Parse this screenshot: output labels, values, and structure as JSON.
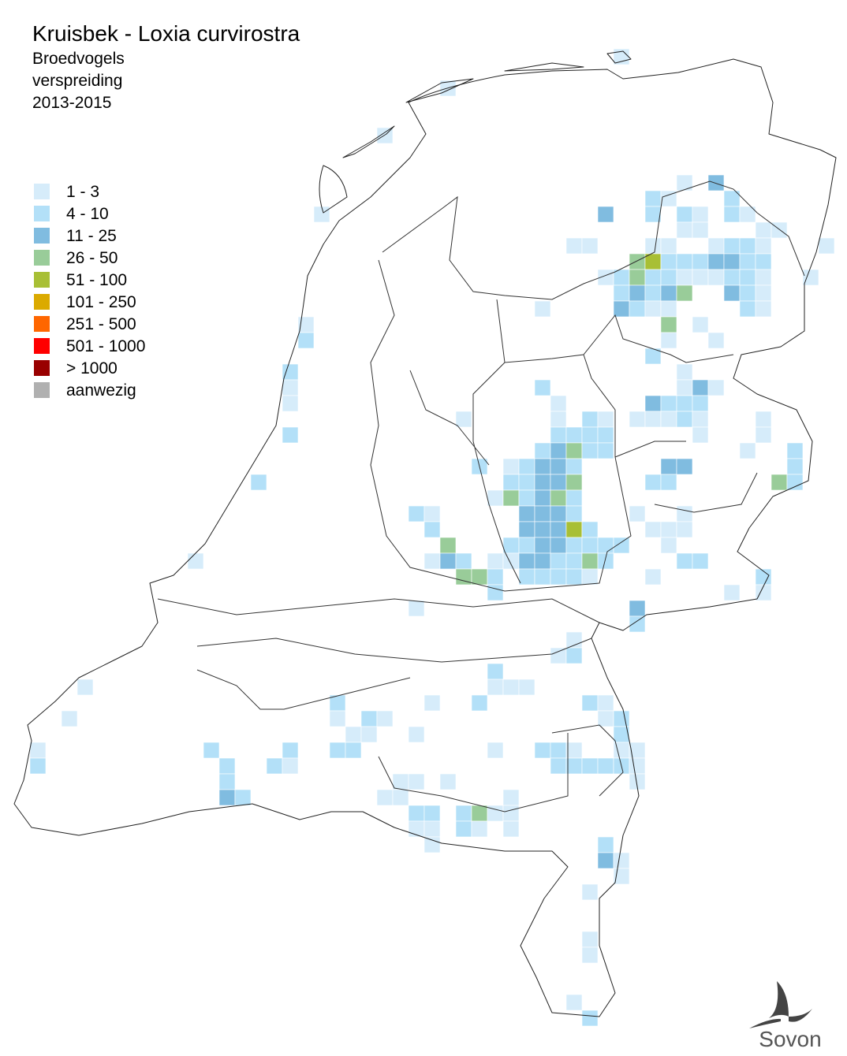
{
  "title": "Kruisbek - Loxia curvirostra",
  "subtitle": [
    "Broedvogels",
    "verspreiding",
    "2013-2015"
  ],
  "legend": [
    {
      "label": "1 - 3",
      "color": "#d6ecfa"
    },
    {
      "label": "4 - 10",
      "color": "#b3e0f8"
    },
    {
      "label": "11 - 25",
      "color": "#80bce0"
    },
    {
      "label": "26 - 50",
      "color": "#99cc99"
    },
    {
      "label": "51 - 100",
      "color": "#a8bf35"
    },
    {
      "label": "101 - 250",
      "color": "#dbaa00"
    },
    {
      "label": "251 - 500",
      "color": "#ff6600"
    },
    {
      "label": "501 - 1000",
      "color": "#ff0000"
    },
    {
      "label": "> 1000",
      "color": "#990000"
    },
    {
      "label": "aanwezig",
      "color": "#b0b0b0"
    }
  ],
  "logo": "Sovon",
  "cells": [
    [
      38,
      3,
      0
    ],
    [
      27,
      5,
      0
    ],
    [
      23,
      8,
      0
    ],
    [
      19,
      13,
      0
    ],
    [
      42,
      11,
      0
    ],
    [
      44,
      11,
      2
    ],
    [
      45,
      12,
      1
    ],
    [
      40,
      12,
      1
    ],
    [
      41,
      12,
      0
    ],
    [
      37,
      13,
      2
    ],
    [
      40,
      13,
      1
    ],
    [
      42,
      13,
      1
    ],
    [
      43,
      13,
      0
    ],
    [
      45,
      13,
      1
    ],
    [
      46,
      13,
      0
    ],
    [
      42,
      14,
      0
    ],
    [
      43,
      14,
      0
    ],
    [
      47,
      14,
      0
    ],
    [
      48,
      14,
      0
    ],
    [
      35,
      15,
      0
    ],
    [
      36,
      15,
      0
    ],
    [
      40,
      15,
      0
    ],
    [
      41,
      15,
      0
    ],
    [
      44,
      15,
      0
    ],
    [
      45,
      15,
      1
    ],
    [
      46,
      15,
      1
    ],
    [
      47,
      15,
      0
    ],
    [
      51,
      15,
      0
    ],
    [
      39,
      16,
      3
    ],
    [
      40,
      16,
      4
    ],
    [
      41,
      16,
      1
    ],
    [
      42,
      16,
      1
    ],
    [
      43,
      16,
      1
    ],
    [
      44,
      16,
      2
    ],
    [
      45,
      16,
      2
    ],
    [
      46,
      16,
      1
    ],
    [
      47,
      16,
      1
    ],
    [
      37,
      17,
      0
    ],
    [
      38,
      17,
      1
    ],
    [
      39,
      17,
      3
    ],
    [
      40,
      17,
      1
    ],
    [
      41,
      17,
      1
    ],
    [
      42,
      17,
      0
    ],
    [
      43,
      17,
      0
    ],
    [
      44,
      17,
      0
    ],
    [
      45,
      17,
      1
    ],
    [
      46,
      17,
      1
    ],
    [
      47,
      17,
      0
    ],
    [
      50,
      17,
      0
    ],
    [
      38,
      18,
      1
    ],
    [
      39,
      18,
      2
    ],
    [
      40,
      18,
      1
    ],
    [
      41,
      18,
      2
    ],
    [
      42,
      18,
      3
    ],
    [
      45,
      18,
      2
    ],
    [
      46,
      18,
      1
    ],
    [
      47,
      18,
      0
    ],
    [
      33,
      19,
      0
    ],
    [
      38,
      19,
      2
    ],
    [
      39,
      19,
      1
    ],
    [
      40,
      19,
      0
    ],
    [
      41,
      19,
      0
    ],
    [
      46,
      19,
      1
    ],
    [
      47,
      19,
      0
    ],
    [
      18,
      20,
      0
    ],
    [
      41,
      20,
      3
    ],
    [
      43,
      20,
      0
    ],
    [
      18,
      21,
      1
    ],
    [
      41,
      21,
      0
    ],
    [
      44,
      21,
      0
    ],
    [
      40,
      22,
      1
    ],
    [
      17,
      23,
      1
    ],
    [
      42,
      23,
      0
    ],
    [
      17,
      24,
      0
    ],
    [
      33,
      24,
      1
    ],
    [
      42,
      24,
      0
    ],
    [
      43,
      24,
      2
    ],
    [
      44,
      24,
      0
    ],
    [
      17,
      25,
      0
    ],
    [
      34,
      25,
      0
    ],
    [
      40,
      25,
      2
    ],
    [
      41,
      25,
      1
    ],
    [
      42,
      25,
      1
    ],
    [
      43,
      25,
      1
    ],
    [
      28,
      26,
      0
    ],
    [
      34,
      26,
      0
    ],
    [
      36,
      26,
      1
    ],
    [
      37,
      26,
      0
    ],
    [
      39,
      26,
      0
    ],
    [
      40,
      26,
      0
    ],
    [
      41,
      26,
      0
    ],
    [
      42,
      26,
      1
    ],
    [
      43,
      26,
      0
    ],
    [
      47,
      26,
      0
    ],
    [
      17,
      27,
      1
    ],
    [
      34,
      27,
      1
    ],
    [
      35,
      27,
      1
    ],
    [
      36,
      27,
      1
    ],
    [
      37,
      27,
      1
    ],
    [
      43,
      27,
      0
    ],
    [
      47,
      27,
      0
    ],
    [
      33,
      28,
      1
    ],
    [
      34,
      28,
      2
    ],
    [
      35,
      28,
      3
    ],
    [
      36,
      28,
      1
    ],
    [
      37,
      28,
      1
    ],
    [
      46,
      28,
      0
    ],
    [
      49,
      28,
      1
    ],
    [
      29,
      29,
      1
    ],
    [
      31,
      29,
      0
    ],
    [
      32,
      29,
      1
    ],
    [
      33,
      29,
      2
    ],
    [
      34,
      29,
      2
    ],
    [
      35,
      29,
      1
    ],
    [
      41,
      29,
      2
    ],
    [
      42,
      29,
      2
    ],
    [
      49,
      29,
      1
    ],
    [
      15,
      30,
      1
    ],
    [
      31,
      30,
      1
    ],
    [
      32,
      30,
      1
    ],
    [
      33,
      30,
      2
    ],
    [
      34,
      30,
      2
    ],
    [
      35,
      30,
      3
    ],
    [
      40,
      30,
      1
    ],
    [
      41,
      30,
      1
    ],
    [
      48,
      30,
      3
    ],
    [
      49,
      30,
      1
    ],
    [
      30,
      31,
      0
    ],
    [
      31,
      31,
      3
    ],
    [
      32,
      31,
      1
    ],
    [
      33,
      31,
      2
    ],
    [
      34,
      31,
      3
    ],
    [
      35,
      31,
      1
    ],
    [
      25,
      32,
      1
    ],
    [
      26,
      32,
      0
    ],
    [
      32,
      32,
      2
    ],
    [
      33,
      32,
      2
    ],
    [
      34,
      32,
      2
    ],
    [
      35,
      32,
      1
    ],
    [
      39,
      32,
      0
    ],
    [
      42,
      32,
      0
    ],
    [
      26,
      33,
      1
    ],
    [
      32,
      33,
      2
    ],
    [
      33,
      33,
      2
    ],
    [
      34,
      33,
      2
    ],
    [
      35,
      33,
      4
    ],
    [
      36,
      33,
      1
    ],
    [
      40,
      33,
      0
    ],
    [
      41,
      33,
      0
    ],
    [
      42,
      33,
      0
    ],
    [
      27,
      34,
      3
    ],
    [
      31,
      34,
      1
    ],
    [
      32,
      34,
      1
    ],
    [
      33,
      34,
      2
    ],
    [
      34,
      34,
      2
    ],
    [
      35,
      34,
      1
    ],
    [
      36,
      34,
      1
    ],
    [
      37,
      34,
      1
    ],
    [
      38,
      34,
      1
    ],
    [
      41,
      34,
      0
    ],
    [
      11,
      35,
      0
    ],
    [
      26,
      35,
      0
    ],
    [
      27,
      35,
      2
    ],
    [
      28,
      35,
      1
    ],
    [
      30,
      35,
      0
    ],
    [
      31,
      35,
      0
    ],
    [
      32,
      35,
      2
    ],
    [
      33,
      35,
      2
    ],
    [
      34,
      35,
      1
    ],
    [
      35,
      35,
      1
    ],
    [
      36,
      35,
      3
    ],
    [
      37,
      35,
      1
    ],
    [
      42,
      35,
      1
    ],
    [
      43,
      35,
      1
    ],
    [
      28,
      36,
      3
    ],
    [
      29,
      36,
      3
    ],
    [
      30,
      36,
      1
    ],
    [
      32,
      36,
      1
    ],
    [
      33,
      36,
      1
    ],
    [
      34,
      36,
      1
    ],
    [
      35,
      36,
      1
    ],
    [
      36,
      36,
      0
    ],
    [
      40,
      36,
      0
    ],
    [
      47,
      36,
      1
    ],
    [
      30,
      37,
      1
    ],
    [
      45,
      37,
      0
    ],
    [
      47,
      37,
      0
    ],
    [
      25,
      38,
      0
    ],
    [
      39,
      38,
      2
    ],
    [
      39,
      39,
      1
    ],
    [
      35,
      40,
      0
    ],
    [
      34,
      41,
      0
    ],
    [
      35,
      41,
      1
    ],
    [
      30,
      42,
      1
    ],
    [
      30,
      43,
      0
    ],
    [
      31,
      43,
      0
    ],
    [
      32,
      43,
      0
    ],
    [
      4,
      43,
      0
    ],
    [
      20,
      44,
      1
    ],
    [
      26,
      44,
      0
    ],
    [
      29,
      44,
      1
    ],
    [
      36,
      44,
      1
    ],
    [
      37,
      44,
      0
    ],
    [
      3,
      45,
      0
    ],
    [
      20,
      45,
      0
    ],
    [
      22,
      45,
      1
    ],
    [
      23,
      45,
      0
    ],
    [
      37,
      45,
      0
    ],
    [
      38,
      45,
      1
    ],
    [
      21,
      46,
      0
    ],
    [
      22,
      46,
      0
    ],
    [
      25,
      46,
      0
    ],
    [
      38,
      46,
      1
    ],
    [
      1,
      47,
      0
    ],
    [
      12,
      47,
      1
    ],
    [
      17,
      47,
      1
    ],
    [
      20,
      47,
      1
    ],
    [
      21,
      47,
      1
    ],
    [
      30,
      47,
      0
    ],
    [
      33,
      47,
      1
    ],
    [
      34,
      47,
      1
    ],
    [
      35,
      47,
      0
    ],
    [
      38,
      47,
      0
    ],
    [
      39,
      47,
      0
    ],
    [
      1,
      48,
      1
    ],
    [
      13,
      48,
      1
    ],
    [
      16,
      48,
      1
    ],
    [
      17,
      48,
      0
    ],
    [
      34,
      48,
      1
    ],
    [
      35,
      48,
      1
    ],
    [
      36,
      48,
      1
    ],
    [
      37,
      48,
      1
    ],
    [
      38,
      48,
      1
    ],
    [
      39,
      48,
      0
    ],
    [
      13,
      49,
      1
    ],
    [
      24,
      49,
      0
    ],
    [
      25,
      49,
      0
    ],
    [
      27,
      49,
      0
    ],
    [
      39,
      49,
      0
    ],
    [
      13,
      50,
      2
    ],
    [
      14,
      50,
      1
    ],
    [
      23,
      50,
      0
    ],
    [
      24,
      50,
      0
    ],
    [
      31,
      50,
      0
    ],
    [
      25,
      51,
      1
    ],
    [
      26,
      51,
      1
    ],
    [
      28,
      51,
      1
    ],
    [
      29,
      51,
      3
    ],
    [
      30,
      51,
      0
    ],
    [
      31,
      51,
      0
    ],
    [
      25,
      52,
      0
    ],
    [
      26,
      52,
      0
    ],
    [
      28,
      52,
      1
    ],
    [
      29,
      52,
      0
    ],
    [
      31,
      52,
      0
    ],
    [
      26,
      53,
      0
    ],
    [
      37,
      53,
      1
    ],
    [
      37,
      54,
      2
    ],
    [
      38,
      54,
      0
    ],
    [
      38,
      55,
      0
    ],
    [
      36,
      56,
      0
    ],
    [
      36,
      59,
      0
    ],
    [
      36,
      60,
      0
    ],
    [
      35,
      63,
      0
    ],
    [
      36,
      64,
      1
    ]
  ]
}
